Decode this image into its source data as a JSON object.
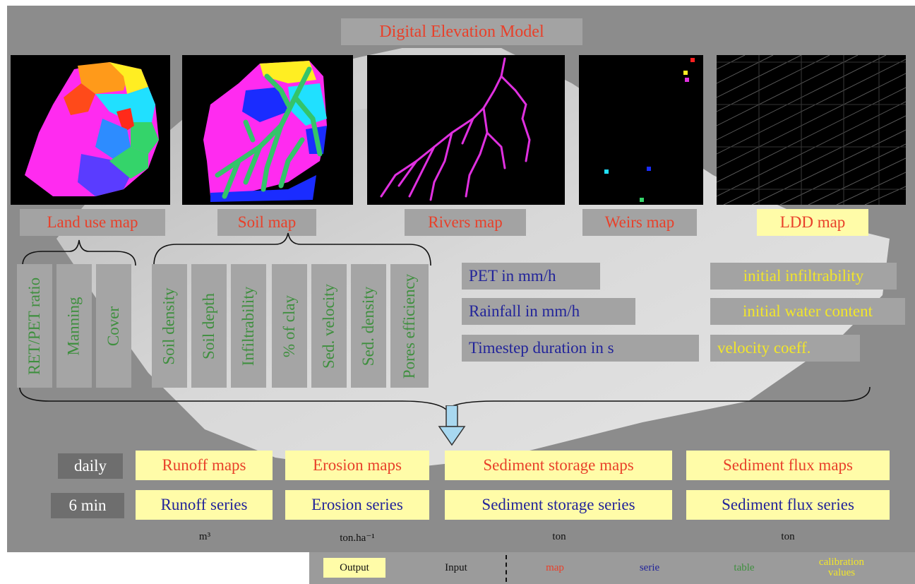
{
  "title": "Digital Elevation Model",
  "maps": [
    {
      "label": "Land use map",
      "color": "red"
    },
    {
      "label": "Soil map",
      "color": "red"
    },
    {
      "label": "Rivers map",
      "color": "red"
    },
    {
      "label": "Weirs map",
      "color": "red"
    },
    {
      "label": "LDD map",
      "color": "red"
    }
  ],
  "land_use_params": [
    "RET/PET ratio",
    "Manning",
    "Cover"
  ],
  "soil_params": [
    "Soil density",
    "Soil depth",
    "Infiltrability",
    "% of clay",
    "Sed. velocity",
    "Sed. density",
    "Pores efficiency"
  ],
  "series_inputs": [
    "PET in mm/h",
    "Rainfall in mm/h",
    "Timestep duration in s"
  ],
  "calibration_values": [
    "initial infiltrability",
    "initial water content",
    "velocity coeff."
  ],
  "outputs": {
    "daily": {
      "label": "daily",
      "items": [
        "Runoff maps",
        "Erosion maps",
        "Sediment storage maps",
        "Sediment flux maps"
      ]
    },
    "six_min": {
      "label": "6 min",
      "items": [
        "Runoff series",
        "Erosion series",
        "Sediment storage series",
        "Sediment flux series"
      ]
    }
  },
  "units": [
    "m³",
    "ton.ha⁻¹",
    "ton",
    "ton"
  ],
  "legend": {
    "output": "Output",
    "input": "Input",
    "map": "map",
    "serie": "serie",
    "table": "table",
    "calibration": "calibration values"
  },
  "colors": {
    "map": "#e8402a",
    "serie": "#22249a",
    "table": "#3e8f3e",
    "calibration": "#f2e62a",
    "output_bg": "#fffca8",
    "panel_bg": "#a3a3a3"
  }
}
